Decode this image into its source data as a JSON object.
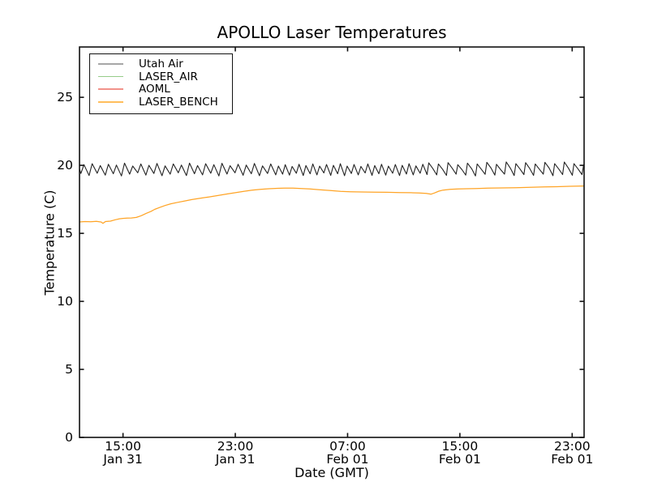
{
  "chart_data": {
    "type": "line",
    "title": "APOLLO Laser Temperatures",
    "xlabel": "Date (GMT)",
    "ylabel": "Temperature (C)",
    "xlim_hours": [
      11.9,
      47.85
    ],
    "ylim": [
      0,
      28.7
    ],
    "x_ticks": [
      {
        "hour": 15,
        "time": "15:00",
        "date": "Jan 31"
      },
      {
        "hour": 23,
        "time": "23:00",
        "date": "Jan 31"
      },
      {
        "hour": 31,
        "time": "07:00",
        "date": "Feb 01"
      },
      {
        "hour": 39,
        "time": "15:00",
        "date": "Feb 01"
      },
      {
        "hour": 47,
        "time": "23:00",
        "date": "Feb 01"
      }
    ],
    "y_ticks": [
      0,
      5,
      10,
      15,
      20,
      25
    ],
    "grid": false,
    "legend_position": "upper left",
    "series": [
      {
        "name": "Utah Air",
        "color": "#222222",
        "legend_color": "#a6a6a6",
        "width": 1.1,
        "points": [
          [
            11.9,
            19.72
          ],
          [
            12.0,
            19.4
          ],
          [
            12.22,
            20.05
          ],
          [
            12.58,
            19.25
          ],
          [
            12.8,
            20.12
          ],
          [
            13.16,
            19.42
          ],
          [
            13.38,
            19.98
          ],
          [
            13.74,
            19.28
          ],
          [
            13.96,
            20.08
          ],
          [
            14.31,
            19.38
          ],
          [
            14.53,
            20.02
          ],
          [
            14.89,
            19.22
          ],
          [
            15.11,
            20.16
          ],
          [
            15.47,
            19.35
          ],
          [
            15.69,
            19.95
          ],
          [
            16.05,
            19.45
          ],
          [
            16.27,
            20.1
          ],
          [
            16.63,
            19.28
          ],
          [
            16.85,
            20.0
          ],
          [
            17.2,
            19.4
          ],
          [
            17.42,
            20.14
          ],
          [
            17.78,
            19.24
          ],
          [
            18.0,
            19.96
          ],
          [
            18.36,
            19.35
          ],
          [
            18.58,
            20.1
          ],
          [
            18.94,
            19.45
          ],
          [
            19.16,
            20.02
          ],
          [
            19.52,
            19.25
          ],
          [
            19.74,
            20.16
          ],
          [
            20.09,
            19.38
          ],
          [
            20.31,
            19.98
          ],
          [
            20.67,
            19.3
          ],
          [
            20.89,
            20.12
          ],
          [
            21.25,
            19.42
          ],
          [
            21.47,
            20.05
          ],
          [
            21.83,
            19.22
          ],
          [
            22.05,
            20.15
          ],
          [
            22.41,
            19.36
          ],
          [
            22.63,
            19.97
          ],
          [
            22.98,
            19.45
          ],
          [
            23.2,
            20.08
          ],
          [
            23.56,
            19.27
          ],
          [
            23.78,
            20.02
          ],
          [
            24.14,
            19.38
          ],
          [
            24.36,
            20.14
          ],
          [
            24.72,
            19.24
          ],
          [
            24.94,
            19.96
          ],
          [
            25.3,
            19.4
          ],
          [
            25.52,
            20.1
          ],
          [
            25.88,
            19.3
          ],
          [
            26.07,
            19.95
          ],
          [
            26.37,
            19.35
          ],
          [
            26.56,
            20.05
          ],
          [
            26.86,
            19.28
          ],
          [
            27.05,
            19.92
          ],
          [
            27.35,
            19.42
          ],
          [
            27.54,
            20.08
          ],
          [
            27.84,
            19.25
          ],
          [
            28.03,
            19.98
          ],
          [
            28.33,
            19.38
          ],
          [
            28.52,
            20.1
          ],
          [
            28.82,
            19.3
          ],
          [
            29.01,
            19.94
          ],
          [
            29.31,
            19.44
          ],
          [
            29.5,
            20.06
          ],
          [
            29.8,
            19.26
          ],
          [
            29.99,
            20.0
          ],
          [
            30.29,
            19.38
          ],
          [
            30.48,
            20.12
          ],
          [
            30.78,
            19.24
          ],
          [
            30.97,
            19.95
          ],
          [
            31.27,
            19.4
          ],
          [
            31.46,
            20.06
          ],
          [
            31.76,
            19.3
          ],
          [
            31.95,
            19.92
          ],
          [
            32.25,
            19.44
          ],
          [
            32.44,
            20.1
          ],
          [
            32.74,
            19.26
          ],
          [
            32.93,
            19.98
          ],
          [
            33.23,
            19.38
          ],
          [
            33.42,
            20.08
          ],
          [
            33.72,
            19.28
          ],
          [
            33.91,
            19.94
          ],
          [
            34.21,
            19.42
          ],
          [
            34.4,
            20.06
          ],
          [
            34.7,
            19.25
          ],
          [
            34.89,
            20.0
          ],
          [
            35.19,
            19.36
          ],
          [
            35.38,
            20.12
          ],
          [
            35.68,
            19.3
          ],
          [
            35.87,
            19.96
          ],
          [
            36.17,
            19.42
          ],
          [
            36.36,
            20.08
          ],
          [
            36.66,
            19.32
          ],
          [
            36.78,
            20.18
          ],
          [
            37.08,
            19.75
          ],
          [
            37.35,
            19.3
          ],
          [
            37.47,
            20.1
          ],
          [
            37.77,
            19.7
          ],
          [
            38.04,
            19.26
          ],
          [
            38.16,
            20.2
          ],
          [
            38.46,
            19.78
          ],
          [
            38.73,
            19.35
          ],
          [
            38.85,
            20.05
          ],
          [
            39.15,
            19.68
          ],
          [
            39.42,
            19.28
          ],
          [
            39.54,
            20.16
          ],
          [
            39.84,
            19.75
          ],
          [
            40.11,
            19.22
          ],
          [
            40.23,
            20.1
          ],
          [
            40.53,
            19.7
          ],
          [
            40.8,
            19.34
          ],
          [
            40.92,
            20.22
          ],
          [
            41.22,
            19.8
          ],
          [
            41.49,
            19.28
          ],
          [
            41.61,
            20.08
          ],
          [
            41.91,
            19.68
          ],
          [
            42.18,
            19.35
          ],
          [
            42.3,
            20.25
          ],
          [
            42.6,
            19.78
          ],
          [
            42.87,
            19.25
          ],
          [
            42.99,
            20.12
          ],
          [
            43.29,
            19.72
          ],
          [
            43.56,
            19.32
          ],
          [
            43.68,
            20.2
          ],
          [
            43.98,
            19.76
          ],
          [
            44.25,
            19.26
          ],
          [
            44.37,
            20.1
          ],
          [
            44.67,
            19.7
          ],
          [
            44.94,
            19.35
          ],
          [
            45.06,
            20.22
          ],
          [
            45.36,
            19.8
          ],
          [
            45.63,
            19.24
          ],
          [
            45.75,
            20.12
          ],
          [
            46.05,
            19.72
          ],
          [
            46.32,
            19.32
          ],
          [
            46.44,
            20.24
          ],
          [
            46.74,
            19.78
          ],
          [
            47.01,
            19.27
          ],
          [
            47.13,
            20.12
          ],
          [
            47.43,
            19.72
          ],
          [
            47.7,
            19.32
          ],
          [
            47.82,
            20.05
          ],
          [
            47.85,
            19.98
          ]
        ]
      },
      {
        "name": "LASER_AIR",
        "color": "#3aa33a",
        "legend_color": "#96cc8a",
        "width": 1.2,
        "points": []
      },
      {
        "name": "AOML",
        "color": "#e8352a",
        "legend_color": "#f2928a",
        "width": 1.2,
        "points": []
      },
      {
        "name": "LASER_BENCH",
        "color": "#ffa426",
        "legend_color": "#ffbe5c",
        "width": 1.25,
        "points": [
          [
            11.9,
            15.84
          ],
          [
            12.3,
            15.87
          ],
          [
            12.7,
            15.85
          ],
          [
            13.1,
            15.88
          ],
          [
            13.45,
            15.83
          ],
          [
            13.57,
            15.74
          ],
          [
            13.75,
            15.87
          ],
          [
            14.1,
            15.9
          ],
          [
            14.45,
            16.0
          ],
          [
            14.75,
            16.07
          ],
          [
            15.0,
            16.1
          ],
          [
            15.3,
            16.12
          ],
          [
            15.6,
            16.13
          ],
          [
            15.95,
            16.17
          ],
          [
            16.3,
            16.3
          ],
          [
            16.65,
            16.47
          ],
          [
            17.0,
            16.62
          ],
          [
            17.25,
            16.76
          ],
          [
            17.6,
            16.9
          ],
          [
            18.0,
            17.05
          ],
          [
            18.4,
            17.17
          ],
          [
            18.9,
            17.28
          ],
          [
            19.4,
            17.38
          ],
          [
            19.9,
            17.48
          ],
          [
            20.5,
            17.58
          ],
          [
            21.1,
            17.67
          ],
          [
            21.8,
            17.79
          ],
          [
            22.4,
            17.89
          ],
          [
            23.0,
            17.99
          ],
          [
            23.6,
            18.09
          ],
          [
            24.2,
            18.17
          ],
          [
            24.8,
            18.23
          ],
          [
            25.4,
            18.28
          ],
          [
            26.0,
            18.31
          ],
          [
            26.5,
            18.33
          ],
          [
            27.1,
            18.32
          ],
          [
            27.7,
            18.3
          ],
          [
            28.3,
            18.26
          ],
          [
            29.0,
            18.21
          ],
          [
            29.8,
            18.14
          ],
          [
            30.5,
            18.09
          ],
          [
            31.2,
            18.06
          ],
          [
            32.0,
            18.04
          ],
          [
            32.9,
            18.03
          ],
          [
            33.8,
            18.02
          ],
          [
            34.7,
            18.0
          ],
          [
            35.5,
            17.99
          ],
          [
            36.1,
            17.97
          ],
          [
            36.6,
            17.94
          ],
          [
            36.95,
            17.88
          ],
          [
            37.2,
            17.97
          ],
          [
            37.5,
            18.1
          ],
          [
            37.8,
            18.18
          ],
          [
            38.3,
            18.23
          ],
          [
            38.9,
            18.26
          ],
          [
            39.5,
            18.28
          ],
          [
            40.2,
            18.3
          ],
          [
            41.0,
            18.32
          ],
          [
            42.0,
            18.34
          ],
          [
            43.0,
            18.36
          ],
          [
            44.0,
            18.38
          ],
          [
            45.0,
            18.41
          ],
          [
            45.9,
            18.43
          ],
          [
            46.8,
            18.46
          ],
          [
            47.5,
            18.47
          ],
          [
            47.85,
            18.48
          ]
        ]
      }
    ]
  }
}
